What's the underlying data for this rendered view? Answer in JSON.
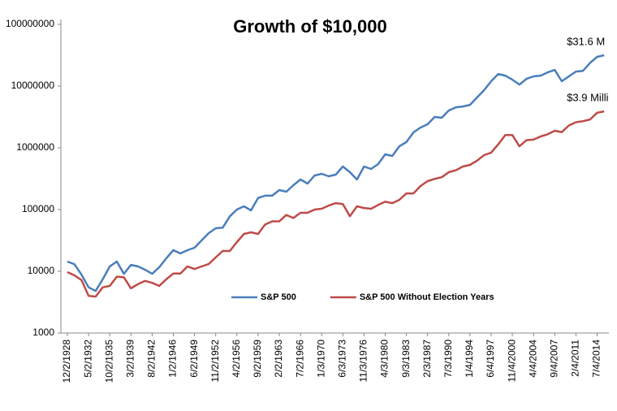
{
  "chart_data": {
    "type": "line",
    "title": "Growth of $10,000",
    "y_scale": "log",
    "ylim": [
      1000,
      100000000
    ],
    "yticks": [
      1000,
      10000,
      100000,
      1000000,
      10000000,
      100000000
    ],
    "legend_position": "lower center",
    "categories": [
      "12/2/1928",
      null,
      null,
      "5/2/1932",
      null,
      null,
      "10/2/1935",
      null,
      null,
      "3/2/1939",
      null,
      null,
      "8/2/1942",
      null,
      null,
      "1/2/1946",
      null,
      null,
      "6/2/1949",
      null,
      null,
      "11/2/1952",
      null,
      null,
      "4/2/1956",
      null,
      null,
      "9/2/1959",
      null,
      null,
      "2/2/1963",
      null,
      null,
      "7/2/1966",
      null,
      null,
      "1/3/1970",
      null,
      null,
      "6/3/1973",
      null,
      null,
      "11/3/1976",
      null,
      null,
      "4/3/1980",
      null,
      null,
      "9/3/1983",
      null,
      null,
      "2/3/1987",
      null,
      null,
      "7/3/1990",
      null,
      null,
      "1/4/1994",
      null,
      null,
      "6/4/1997",
      null,
      null,
      "11/4/2000",
      null,
      null,
      "4/4/2004",
      null,
      null,
      "9/4/2007",
      null,
      null,
      "2/4/2011",
      null,
      null,
      "7/4/2014",
      null
    ],
    "series": [
      {
        "name": "S&P 500",
        "color": "#4a7ebb",
        "values": [
          14400,
          13000,
          8800,
          5500,
          4800,
          7400,
          12000,
          14400,
          9100,
          12700,
          12000,
          10600,
          9100,
          11600,
          16200,
          22000,
          19500,
          22000,
          24100,
          31600,
          41400,
          49800,
          51000,
          77800,
          100000,
          113000,
          97000,
          154000,
          168000,
          168000,
          207000,
          195000,
          248000,
          307000,
          264000,
          356000,
          379000,
          346000,
          368000,
          498000,
          403000,
          307000,
          498000,
          455000,
          545000,
          785000,
          739000,
          1060000,
          1240000,
          1780000,
          2130000,
          2410000,
          3160000,
          3070000,
          4030000,
          4540000,
          4670000,
          4970000,
          6540000,
          8590000,
          12000000,
          15700000,
          14800000,
          12700000,
          10600000,
          13100000,
          14400000,
          14800000,
          16700000,
          18300000,
          12000000,
          14400000,
          17200000,
          17700000,
          23800000,
          29800000,
          31600000
        ]
      },
      {
        "name": "S&P 500 Without Election Years",
        "color": "#be4b48",
        "values": [
          9700,
          8600,
          7200,
          4000,
          3900,
          5500,
          5800,
          8200,
          8000,
          5300,
          6200,
          7000,
          6500,
          5800,
          7400,
          9200,
          9200,
          12000,
          10900,
          12000,
          13100,
          16800,
          21300,
          21300,
          29800,
          40300,
          42800,
          40300,
          57300,
          64400,
          64400,
          82000,
          73000,
          88600,
          88600,
          100000,
          103000,
          116000,
          127000,
          123000,
          78000,
          113000,
          106000,
          103000,
          119000,
          134000,
          127000,
          144000,
          183000,
          183000,
          241000,
          289000,
          314000,
          334000,
          403000,
          433000,
          498000,
          530000,
          620000,
          762000,
          836000,
          1140000,
          1610000,
          1610000,
          1060000,
          1330000,
          1360000,
          1530000,
          1660000,
          1890000,
          1800000,
          2300000,
          2600000,
          2700000,
          2880000,
          3700000,
          3900000
        ]
      }
    ],
    "annotations": [
      {
        "text": "$31.6 M",
        "series": 0
      },
      {
        "text": "$3.9 Milli",
        "series": 1
      }
    ]
  }
}
